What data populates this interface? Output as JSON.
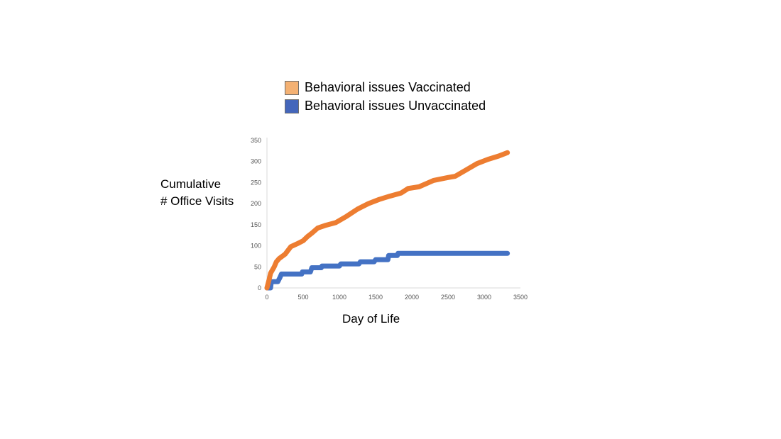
{
  "chart_data": {
    "type": "line",
    "title": "",
    "xlabel": "Day of Life",
    "ylabel_lines": [
      "Cumulative",
      "# Office Visits"
    ],
    "xlim": [
      0,
      3500
    ],
    "ylim": [
      0,
      350
    ],
    "xticks": [
      0,
      500,
      1000,
      1500,
      2000,
      2500,
      3000,
      3500
    ],
    "yticks": [
      0,
      50,
      100,
      150,
      200,
      250,
      300,
      350
    ],
    "grid": false,
    "legend_position": "top",
    "series": [
      {
        "name": "Behavioral issues Vaccinated",
        "color": "#ed7d31",
        "legend_color": "#f4b173",
        "points": [
          [
            0,
            0
          ],
          [
            30,
            20
          ],
          [
            50,
            35
          ],
          [
            100,
            50
          ],
          [
            130,
            62
          ],
          [
            170,
            70
          ],
          [
            250,
            80
          ],
          [
            330,
            98
          ],
          [
            420,
            105
          ],
          [
            500,
            112
          ],
          [
            560,
            122
          ],
          [
            620,
            130
          ],
          [
            700,
            142
          ],
          [
            800,
            148
          ],
          [
            950,
            155
          ],
          [
            1100,
            170
          ],
          [
            1250,
            187
          ],
          [
            1400,
            200
          ],
          [
            1550,
            210
          ],
          [
            1700,
            218
          ],
          [
            1850,
            225
          ],
          [
            1950,
            236
          ],
          [
            2100,
            240
          ],
          [
            2300,
            255
          ],
          [
            2500,
            262
          ],
          [
            2600,
            265
          ],
          [
            2750,
            280
          ],
          [
            2900,
            295
          ],
          [
            3050,
            305
          ],
          [
            3200,
            313
          ],
          [
            3320,
            321
          ]
        ]
      },
      {
        "name": "Behavioral issues Unvaccinated",
        "color": "#4472c4",
        "legend_color": "#4466bb",
        "points": [
          [
            0,
            0
          ],
          [
            50,
            0
          ],
          [
            60,
            15
          ],
          [
            150,
            15
          ],
          [
            180,
            25
          ],
          [
            200,
            33
          ],
          [
            480,
            33
          ],
          [
            490,
            38
          ],
          [
            600,
            38
          ],
          [
            620,
            48
          ],
          [
            750,
            48
          ],
          [
            760,
            52
          ],
          [
            1000,
            52
          ],
          [
            1020,
            57
          ],
          [
            1270,
            57
          ],
          [
            1290,
            62
          ],
          [
            1480,
            62
          ],
          [
            1500,
            67
          ],
          [
            1670,
            67
          ],
          [
            1680,
            77
          ],
          [
            1800,
            77
          ],
          [
            1810,
            82
          ],
          [
            3320,
            82
          ]
        ]
      }
    ]
  }
}
